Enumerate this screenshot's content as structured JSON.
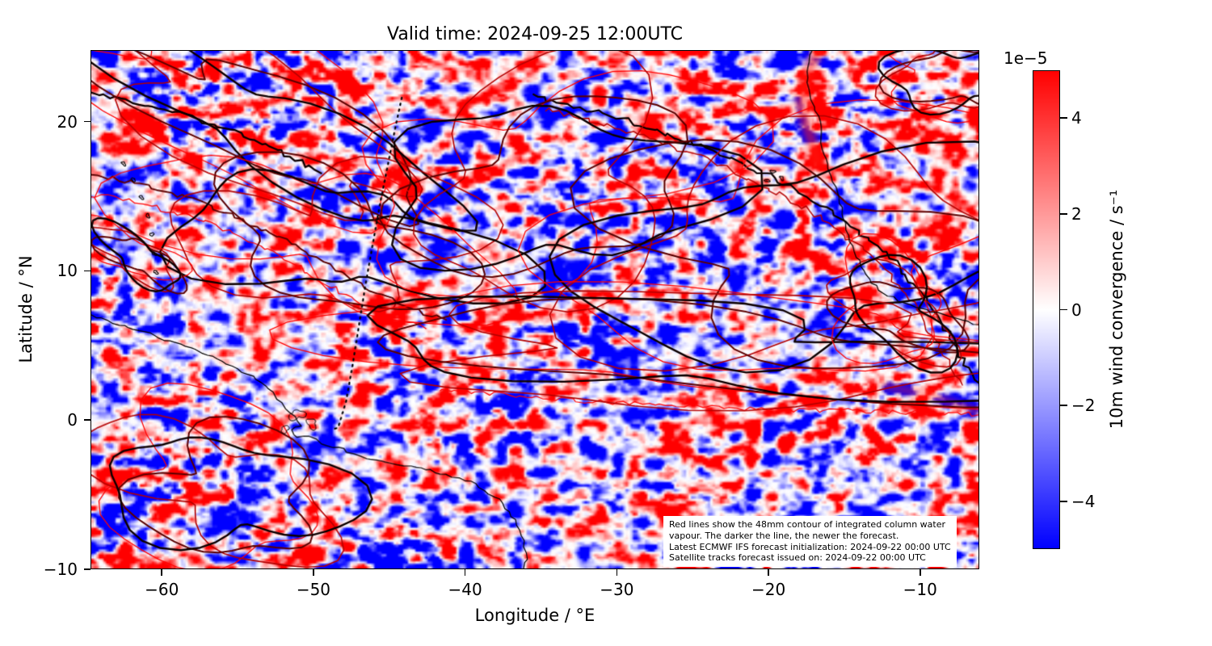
{
  "chart_data": {
    "type": "heatmap",
    "title": "Valid time: 2024-09-25 12:00UTC",
    "xlabel": "Longitude / °E",
    "ylabel": "Latitude / °N",
    "xlim": [
      -64.7,
      -6.1
    ],
    "ylim": [
      -10,
      24.8
    ],
    "x_ticks": {
      "values": [
        -60,
        -50,
        -40,
        -30,
        -20,
        -10
      ],
      "labels": [
        "−60",
        "−50",
        "−40",
        "−30",
        "−20",
        "−10"
      ]
    },
    "y_ticks": {
      "values": [
        20,
        10,
        0,
        -10
      ],
      "labels": [
        "20",
        "10",
        "0",
        "−10"
      ]
    },
    "grid": false,
    "field": "10m wind convergence",
    "colormap": "bwr",
    "colorbar": {
      "label": "10m wind convergence / s⁻¹",
      "scale_label": "1e−5",
      "vmin_display": -5,
      "vmax_display": 5,
      "ticks": {
        "values": [
          4,
          2,
          0,
          -2,
          -4
        ],
        "labels": [
          "4",
          "2",
          "0",
          "−2",
          "−4"
        ]
      },
      "color_positive": "#ff0000",
      "color_zero": "#ffffff",
      "color_negative": "#0000ff"
    },
    "overlays": {
      "contour_meaning": "48mm contour of integrated column water vapour; darker line = newer forecast",
      "contour_colors": [
        "#ff0000",
        "#b40000",
        "#5c0000",
        "#0d0000"
      ],
      "coastline_color": "#000000",
      "satellite_track_style": "dotted"
    },
    "annotation_lines": [
      "Red lines show the 48mm contour of integrated column water",
      "vapour. The darker the line, the newer the forecast.",
      "Latest ECMWF IFS forecast initialization: 2024-09-22 00:00 UTC",
      "Satellite tracks forecast issued on: 2024-09-22 00:00 UTC"
    ]
  }
}
